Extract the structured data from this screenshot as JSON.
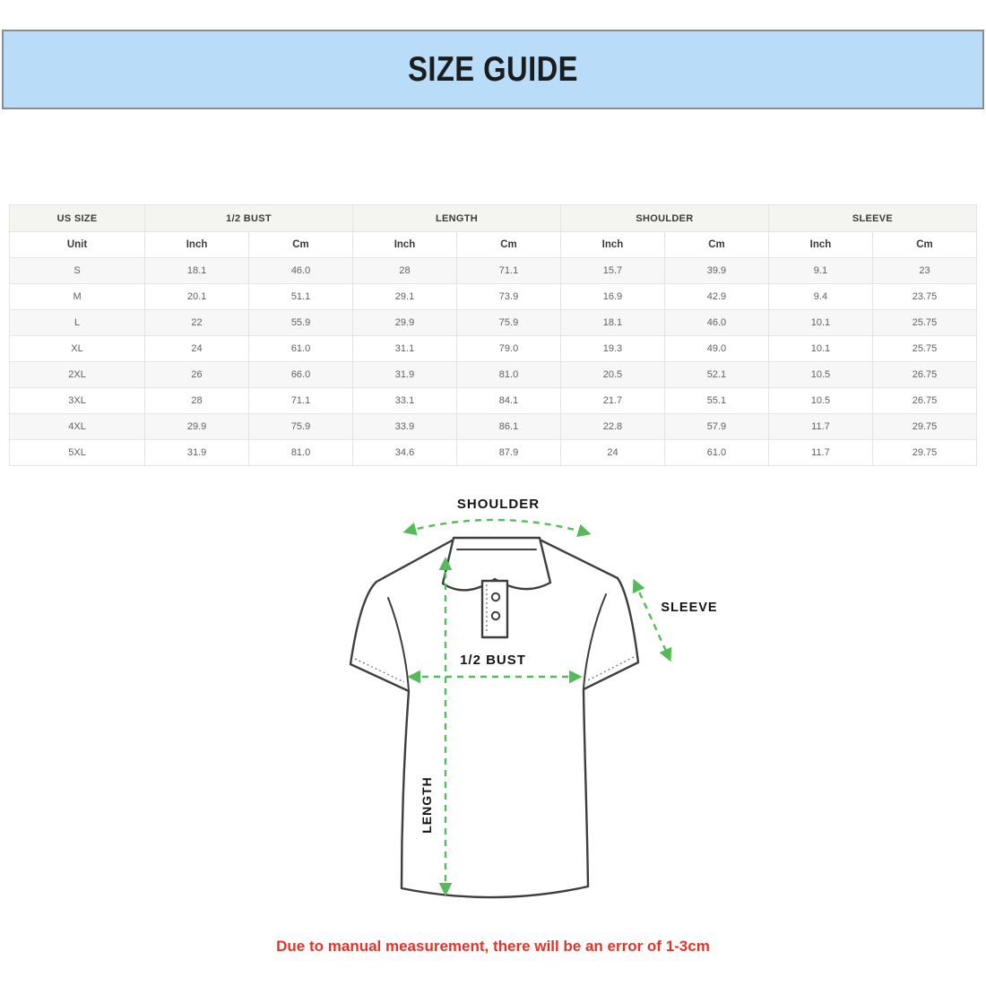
{
  "banner": {
    "title": "SIZE GUIDE"
  },
  "table": {
    "groups": [
      {
        "label": "US SIZE",
        "span": 1
      },
      {
        "label": "1/2 BUST",
        "span": 2
      },
      {
        "label": "LENGTH",
        "span": 2
      },
      {
        "label": "SHOULDER",
        "span": 2
      },
      {
        "label": "SLEEVE",
        "span": 2
      }
    ],
    "unit_row": [
      "Unit",
      "Inch",
      "Cm",
      "Inch",
      "Cm",
      "Inch",
      "Cm",
      "Inch",
      "Cm"
    ],
    "rows": [
      [
        "S",
        "18.1",
        "46.0",
        "28",
        "71.1",
        "15.7",
        "39.9",
        "9.1",
        "23"
      ],
      [
        "M",
        "20.1",
        "51.1",
        "29.1",
        "73.9",
        "16.9",
        "42.9",
        "9.4",
        "23.75"
      ],
      [
        "L",
        "22",
        "55.9",
        "29.9",
        "75.9",
        "18.1",
        "46.0",
        "10.1",
        "25.75"
      ],
      [
        "XL",
        "24",
        "61.0",
        "31.1",
        "79.0",
        "19.3",
        "49.0",
        "10.1",
        "25.75"
      ],
      [
        "2XL",
        "26",
        "66.0",
        "31.9",
        "81.0",
        "20.5",
        "52.1",
        "10.5",
        "26.75"
      ],
      [
        "3XL",
        "28",
        "71.1",
        "33.1",
        "84.1",
        "21.7",
        "55.1",
        "10.5",
        "26.75"
      ],
      [
        "4XL",
        "29.9",
        "75.9",
        "33.9",
        "86.1",
        "22.8",
        "57.9",
        "11.7",
        "29.75"
      ],
      [
        "5XL",
        "31.9",
        "81.0",
        "34.6",
        "87.9",
        "24",
        "61.0",
        "11.7",
        "29.75"
      ]
    ]
  },
  "diagram": {
    "labels": {
      "shoulder": "SHOULDER",
      "sleeve": "SLEEVE",
      "bust": "1/2 BUST",
      "length": "LENGTH"
    }
  },
  "note": {
    "text": "Due to manual measurement, there will be an error of 1-3cm"
  },
  "colors": {
    "banner_bg": "#b9ddf8",
    "banner_border": "#8c8c8c",
    "arrow_green": "#55bb58",
    "note_red": "#e6332a",
    "outline_dark": "#3e3e3e"
  }
}
